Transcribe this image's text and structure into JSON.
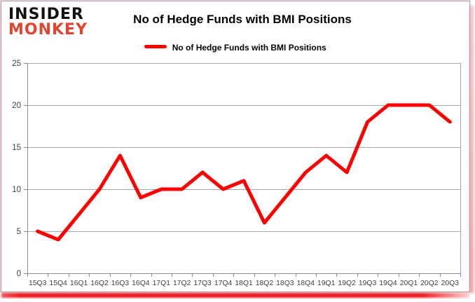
{
  "logo": {
    "line1": "INSIDER",
    "line2": "MONKEY"
  },
  "header": {
    "title": "No of Hedge Funds with BMI Positions"
  },
  "legend": {
    "label": "No of Hedge Funds with BMI Positions",
    "swatch_color": "#ff0000"
  },
  "colors": {
    "line": "#ff0000",
    "logo_black": "#111111",
    "logo_red": "#e2452f",
    "shadow_red": "#ec1c24",
    "grid": "#a6a6a6",
    "axis": "#8c8c8c",
    "tick_text": "#3f3f3f",
    "card_border": "#a6a6a6"
  },
  "chart_data": {
    "type": "line",
    "title": "No of Hedge Funds with BMI Positions",
    "series": [
      {
        "name": "No of Hedge Funds with BMI Positions",
        "color": "#ff0000",
        "values": [
          5,
          4,
          7,
          10,
          14,
          9,
          10,
          10,
          12,
          10,
          11,
          6,
          9,
          12,
          14,
          12,
          18,
          20,
          20,
          20,
          18
        ]
      }
    ],
    "categories": [
      "15Q3",
      "15Q4",
      "16Q1",
      "16Q2",
      "16Q3",
      "16Q4",
      "17Q1",
      "17Q2",
      "17Q3",
      "17Q4",
      "18Q1",
      "18Q2",
      "18Q3",
      "18Q4",
      "19Q1",
      "19Q2",
      "19Q3",
      "19Q4",
      "20Q1",
      "20Q2",
      "20Q3"
    ],
    "xlabel": "",
    "ylabel": "",
    "ylim": [
      0,
      25
    ],
    "yticks": [
      0,
      5,
      10,
      15,
      20,
      25
    ],
    "grid": true,
    "legend_position": "top-center"
  }
}
